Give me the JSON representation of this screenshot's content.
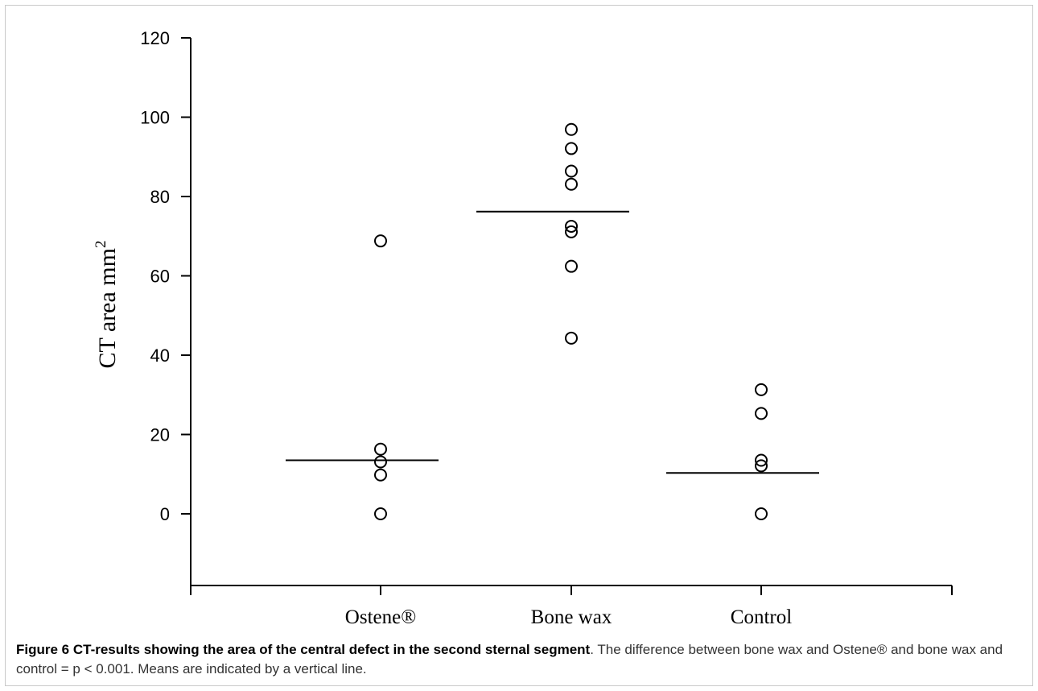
{
  "chart_data": {
    "type": "scatter",
    "ylabel": "CT area mm",
    "ylabel_sup": "2",
    "ylim": [
      -18,
      120
    ],
    "yticks": [
      0,
      20,
      40,
      60,
      80,
      100,
      120
    ],
    "ytick_labels": [
      "0",
      "20",
      "40",
      "60",
      "80",
      "100",
      "120"
    ],
    "categories": [
      "Ostene®",
      "Bone wax",
      "Control"
    ],
    "groups": [
      {
        "category": "Ostene®",
        "points": [
          68.8,
          16.3,
          13.1,
          9.8,
          0
        ],
        "mean": 13.5
      },
      {
        "category": "Bone wax",
        "points": [
          96.9,
          92.1,
          86.4,
          83.1,
          72.5,
          71.1,
          62.4,
          44.3
        ],
        "mean": 76.2
      },
      {
        "category": "Control",
        "points": [
          31.3,
          25.3,
          13.5,
          12.1,
          0
        ],
        "mean": 10.3
      }
    ],
    "grid": false,
    "legend": "none"
  },
  "caption": {
    "lead": "Figure 6 CT-results showing the area of the central defect in the second sternal segment",
    "rest": ". The difference between bone wax and Ostene® and bone wax and control = p < 0.001. Means are indicated by a vertical line."
  }
}
